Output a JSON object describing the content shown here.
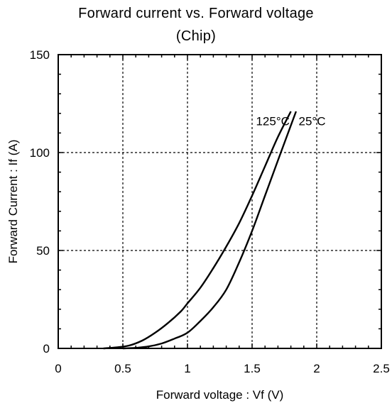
{
  "chart_data": {
    "type": "line",
    "title_line1": "Forward current vs. Forward voltage",
    "title_line2": "(Chip)",
    "xlabel": "Forward voltage : Vf (V)",
    "ylabel": "Forward Current : If (A)",
    "xlim": [
      0,
      2.5
    ],
    "ylim": [
      0,
      150
    ],
    "x_ticks": [
      "0",
      "0.5",
      "1",
      "1.5",
      "2",
      "2.5"
    ],
    "y_ticks": [
      "0",
      "50",
      "100",
      "150"
    ],
    "grid": true,
    "series": [
      {
        "name": "125°C",
        "x": [
          0.35,
          0.45,
          0.55,
          0.65,
          0.75,
          0.85,
          0.95,
          1.0,
          1.1,
          1.2,
          1.3,
          1.4,
          1.5,
          1.6,
          1.7,
          1.8
        ],
        "y": [
          0,
          0.5,
          1.5,
          4,
          8,
          13,
          19,
          23,
          31,
          41,
          52,
          64,
          78,
          93,
          108,
          121
        ]
      },
      {
        "name": "25°C",
        "x": [
          0.5,
          0.6,
          0.7,
          0.8,
          0.9,
          1.0,
          1.1,
          1.2,
          1.3,
          1.4,
          1.5,
          1.6,
          1.7,
          1.84
        ],
        "y": [
          0,
          0.3,
          1,
          2.5,
          5,
          8,
          14,
          21,
          30,
          44,
          60,
          78,
          96,
          121
        ]
      }
    ],
    "annotations": [
      {
        "text": "125°C",
        "x": 1.53,
        "y": 114
      },
      {
        "text": "25°C",
        "x": 1.86,
        "y": 114
      }
    ]
  }
}
